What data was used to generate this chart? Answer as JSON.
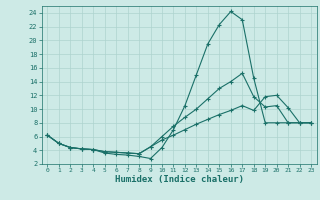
{
  "xlabel": "Humidex (Indice chaleur)",
  "bg_color": "#cdeae6",
  "grid_color": "#aed4cf",
  "line_color": "#1a7068",
  "xlim": [
    -0.5,
    23.5
  ],
  "ylim": [
    2,
    25
  ],
  "yticks": [
    2,
    4,
    6,
    8,
    10,
    12,
    14,
    16,
    18,
    20,
    22,
    24
  ],
  "xticks": [
    0,
    1,
    2,
    3,
    4,
    5,
    6,
    7,
    8,
    9,
    10,
    11,
    12,
    13,
    14,
    15,
    16,
    17,
    18,
    19,
    20,
    21,
    22,
    23
  ],
  "line1_x": [
    0,
    1,
    2,
    3,
    4,
    5,
    6,
    7,
    8,
    9,
    10,
    11,
    12,
    13,
    14,
    15,
    16,
    17,
    18,
    19,
    20,
    21,
    22,
    23
  ],
  "line1_y": [
    6.2,
    5.0,
    4.4,
    4.2,
    4.1,
    3.6,
    3.4,
    3.3,
    3.1,
    2.8,
    4.4,
    7.0,
    10.5,
    15.0,
    19.5,
    22.3,
    24.2,
    23.0,
    14.5,
    8.0,
    8.0,
    8.0,
    8.0,
    8.0
  ],
  "line2_x": [
    0,
    1,
    2,
    3,
    4,
    5,
    6,
    7,
    8,
    9,
    10,
    11,
    12,
    13,
    14,
    15,
    16,
    17,
    18,
    19,
    20,
    21,
    22,
    23
  ],
  "line2_y": [
    6.2,
    5.0,
    4.4,
    4.2,
    4.1,
    3.8,
    3.7,
    3.6,
    3.5,
    4.5,
    6.0,
    7.5,
    8.8,
    10.0,
    11.5,
    13.0,
    14.0,
    15.2,
    11.8,
    10.3,
    10.5,
    8.0,
    8.0,
    8.0
  ],
  "line3_x": [
    0,
    1,
    2,
    3,
    4,
    5,
    6,
    7,
    8,
    9,
    10,
    11,
    12,
    13,
    14,
    15,
    16,
    17,
    18,
    19,
    20,
    21,
    22,
    23
  ],
  "line3_y": [
    6.2,
    5.0,
    4.4,
    4.2,
    4.1,
    3.8,
    3.7,
    3.6,
    3.5,
    4.5,
    5.5,
    6.2,
    7.0,
    7.8,
    8.5,
    9.2,
    9.8,
    10.5,
    9.8,
    11.8,
    12.0,
    10.2,
    8.0,
    8.0
  ]
}
